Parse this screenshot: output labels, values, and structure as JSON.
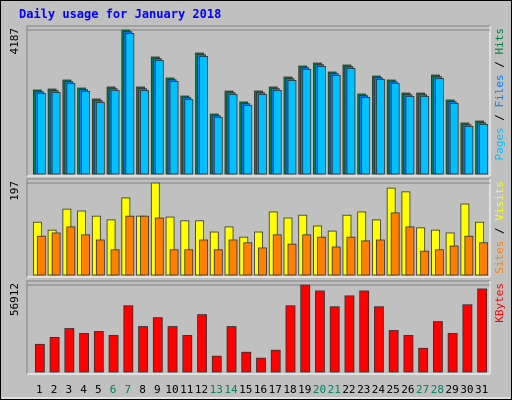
{
  "title": "Daily usage for January 2018",
  "legend_separator": "/",
  "chart_data": [
    {
      "type": "bar",
      "ylim": [
        0,
        4187
      ],
      "yticks": [
        4187
      ],
      "series": [
        {
          "name": "Hits",
          "color": "#008040",
          "values": [
            2442,
            2471,
            2733,
            2500,
            2181,
            2530,
            4187,
            2530,
            3402,
            2791,
            2268,
            3518,
            1745,
            2413,
            2094,
            2413,
            2530,
            2820,
            3140,
            3227,
            2966,
            3169,
            2326,
            2849,
            2733,
            2355,
            2355,
            2878,
            2152,
            1483,
            1541
          ]
        },
        {
          "name": "Files",
          "color": "#0080ff",
          "values": [
            2392,
            2421,
            2683,
            2450,
            2131,
            2480,
            4137,
            2480,
            3352,
            2741,
            2218,
            3468,
            1695,
            2363,
            2044,
            2363,
            2480,
            2770,
            3090,
            3177,
            2916,
            3119,
            2276,
            2799,
            2683,
            2305,
            2305,
            2828,
            2102,
            1433,
            1491
          ]
        },
        {
          "name": "Pages",
          "color": "#00c0ff",
          "values": [
            2342,
            2371,
            2633,
            2400,
            2081,
            2430,
            4087,
            2430,
            3302,
            2691,
            2168,
            3418,
            1645,
            2313,
            1994,
            2313,
            2430,
            2720,
            3040,
            3127,
            2866,
            3069,
            2226,
            2749,
            2633,
            2255,
            2255,
            2778,
            2052,
            1383,
            1441
          ]
        }
      ]
    },
    {
      "type": "bar",
      "ylim": [
        0,
        197
      ],
      "yticks": [
        197
      ],
      "series": [
        {
          "name": "Visits",
          "color": "#ffff00",
          "values": [
            113,
            96,
            141,
            137,
            126,
            118,
            165,
            126,
            197,
            124,
            116,
            116,
            92,
            103,
            81,
            92,
            135,
            122,
            128,
            105,
            94,
            128,
            135,
            118,
            186,
            178,
            101,
            96,
            90,
            152,
            113
          ]
        },
        {
          "name": "Sites",
          "color": "#ff8000",
          "values": [
            83,
            90,
            103,
            86,
            75,
            54,
            126,
            126,
            122,
            54,
            54,
            75,
            54,
            75,
            69,
            58,
            86,
            66,
            86,
            81,
            60,
            81,
            73,
            75,
            133,
            103,
            51,
            54,
            62,
            83,
            69
          ]
        }
      ]
    },
    {
      "type": "bar",
      "ylim": [
        0,
        56912
      ],
      "yticks": [
        56912
      ],
      "categories": [
        "1",
        "2",
        "3",
        "4",
        "5",
        "6",
        "7",
        "8",
        "9",
        "10",
        "11",
        "12",
        "13",
        "14",
        "15",
        "16",
        "17",
        "18",
        "19",
        "20",
        "21",
        "22",
        "23",
        "24",
        "25",
        "26",
        "27",
        "28",
        "29",
        "30",
        "31"
      ],
      "category_colors": [
        "#000000",
        "#000000",
        "#000000",
        "#000000",
        "#000000",
        "#00805c",
        "#00805c",
        "#000000",
        "#000000",
        "#000000",
        "#000000",
        "#000000",
        "#00805c",
        "#00805c",
        "#000000",
        "#000000",
        "#000000",
        "#000000",
        "#000000",
        "#00805c",
        "#00805c",
        "#000000",
        "#000000",
        "#000000",
        "#000000",
        "#000000",
        "#00805c",
        "#00805c",
        "#000000",
        "#000000",
        "#000000"
      ],
      "series": [
        {
          "name": "KBytes",
          "color": "#ff0000",
          "values": [
            18108,
            22635,
            28455,
            25221,
            26515,
            23928,
            43330,
            29748,
            35569,
            29748,
            23928,
            37509,
            10347,
            29748,
            12934,
            9054,
            14227,
            43330,
            56912,
            53030,
            42683,
            49797,
            53030,
            42683,
            27162,
            23928,
            15521,
            32982,
            25221,
            43976,
            54323
          ]
        }
      ]
    }
  ]
}
